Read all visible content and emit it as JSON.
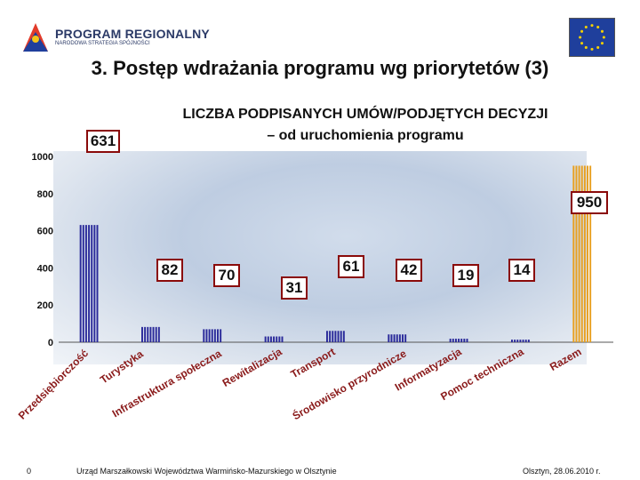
{
  "header": {
    "program_name": "PROGRAM REGIONALNY",
    "program_subtitle": "NARODOWA STRATEGIA SPÓJNOŚCI"
  },
  "title": "3. Postęp wdrażania programu wg priorytetów (3)",
  "chart_title_line1": "LICZBA PODPISANYCH UMÓW/PODJĘTYCH DECYZJI",
  "chart_title_line2": "– od uruchomienia programu",
  "chart_data": {
    "type": "bar",
    "categories": [
      "Przedsiębiorczość",
      "Turystyka",
      "Infrastruktura społeczna",
      "Rewitalizacja",
      "Transport",
      "Środowisko przyrodnicze",
      "Informatyzacja",
      "Pomoc techniczna",
      "Razem"
    ],
    "values": [
      631,
      82,
      70,
      31,
      61,
      42,
      19,
      14,
      950
    ],
    "data_labels": [
      "631",
      "82",
      "70",
      "31",
      "61",
      "42",
      "19",
      "14",
      "950"
    ],
    "yticks": [
      "0",
      "200",
      "400",
      "600",
      "800",
      "1000"
    ],
    "ylim": [
      0,
      1000
    ],
    "colors": {
      "bars": "#2a2a9a",
      "total": "#e8a020",
      "callout_border": "#8a0a0a"
    }
  },
  "footer": {
    "page": "0",
    "institution": "Urząd Marszałkowski Województwa Warmińsko-Mazurskiego w Olsztynie",
    "date": "Olsztyn, 28.06.2010 r."
  }
}
